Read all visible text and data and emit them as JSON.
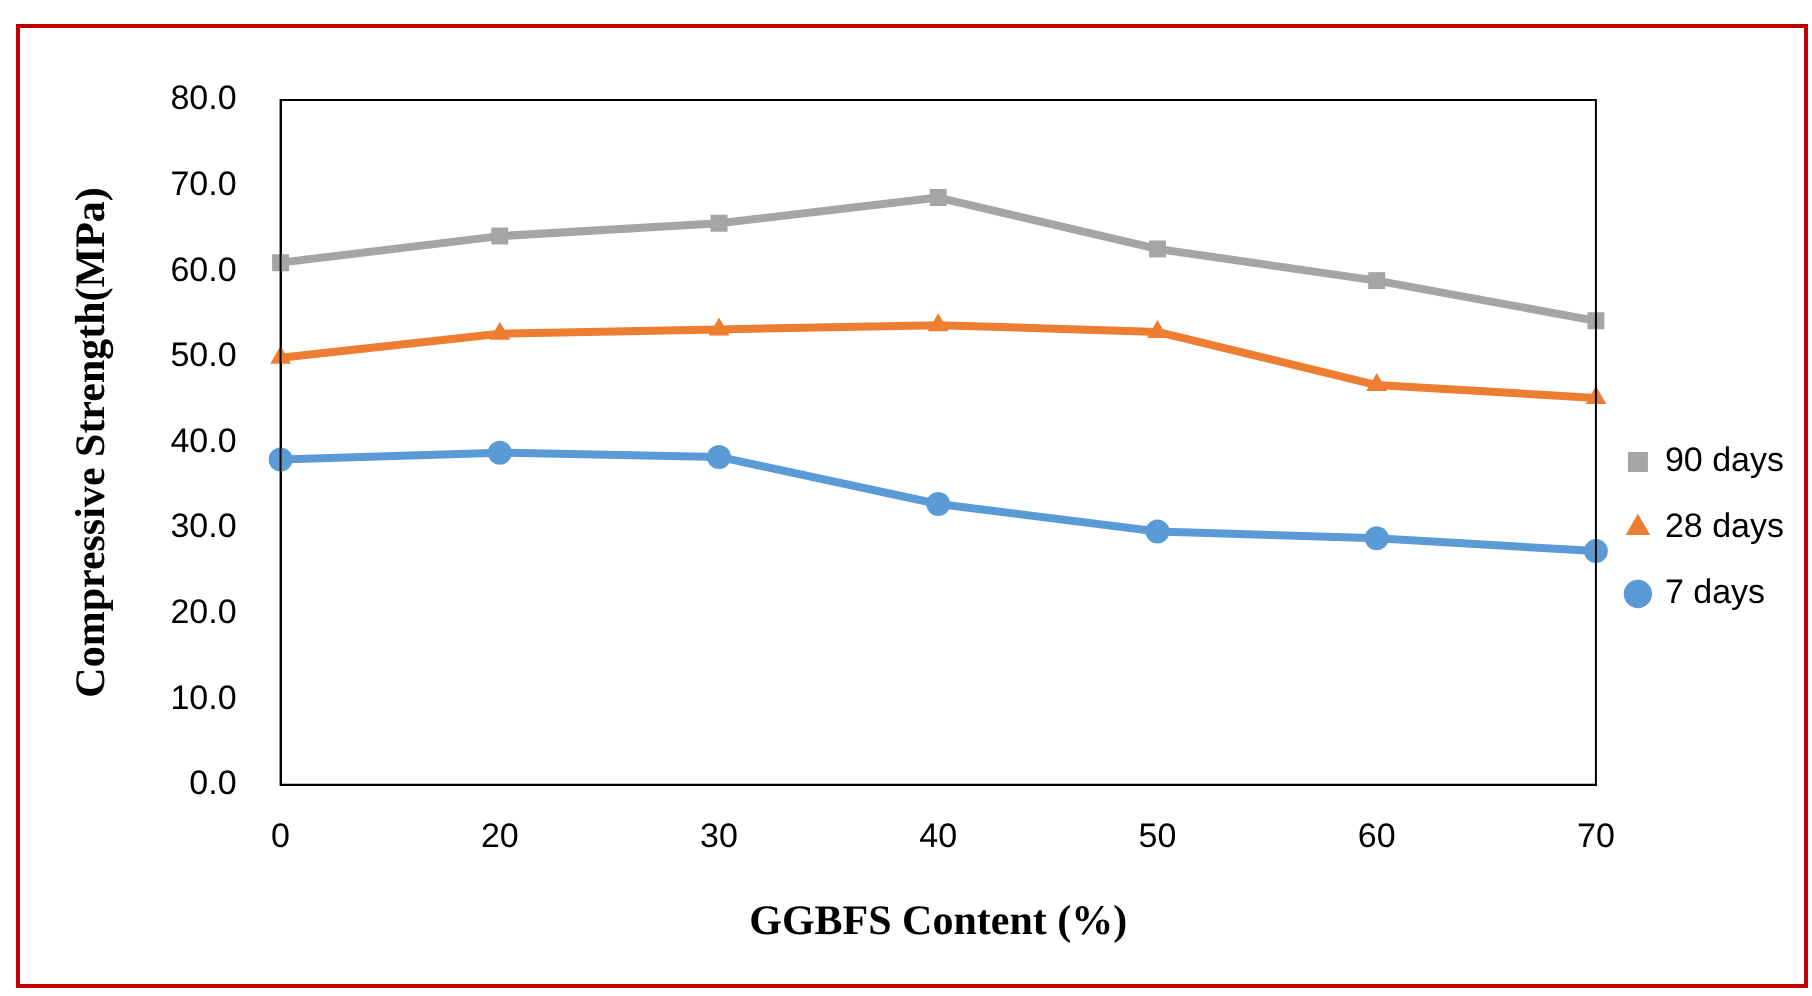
{
  "chart_data": {
    "type": "line",
    "xlabel": "GGBFS Content (%)",
    "ylabel": "Compressive Strength(MPa)",
    "categories": [
      "0",
      "20",
      "30",
      "40",
      "50",
      "60",
      "70"
    ],
    "series": [
      {
        "name": "90 days",
        "color": "#a5a5a5",
        "marker": "square",
        "values": [
          61.0,
          64.1,
          65.6,
          68.6,
          62.6,
          58.9,
          54.2
        ]
      },
      {
        "name": "28 days",
        "color": "#ed7d31",
        "marker": "triangle",
        "values": [
          49.9,
          52.7,
          53.2,
          53.7,
          52.9,
          46.7,
          45.2
        ]
      },
      {
        "name": "7 days",
        "color": "#5b9bd5",
        "marker": "circle",
        "values": [
          38.0,
          38.8,
          38.3,
          32.8,
          29.6,
          28.8,
          27.3
        ]
      }
    ],
    "ylim": [
      0,
      80
    ],
    "yticks": [
      {
        "value": 0,
        "label": "0.0"
      },
      {
        "value": 10,
        "label": "10.0"
      },
      {
        "value": 20,
        "label": "20.0"
      },
      {
        "value": 30,
        "label": "30.0"
      },
      {
        "value": 40,
        "label": "40.0"
      },
      {
        "value": 50,
        "label": "50.0"
      },
      {
        "value": 60,
        "label": "60.0"
      },
      {
        "value": 70,
        "label": "70.0"
      },
      {
        "value": 80,
        "label": "80.0"
      }
    ],
    "grid": false,
    "legend": "right",
    "line_style": "solid"
  }
}
